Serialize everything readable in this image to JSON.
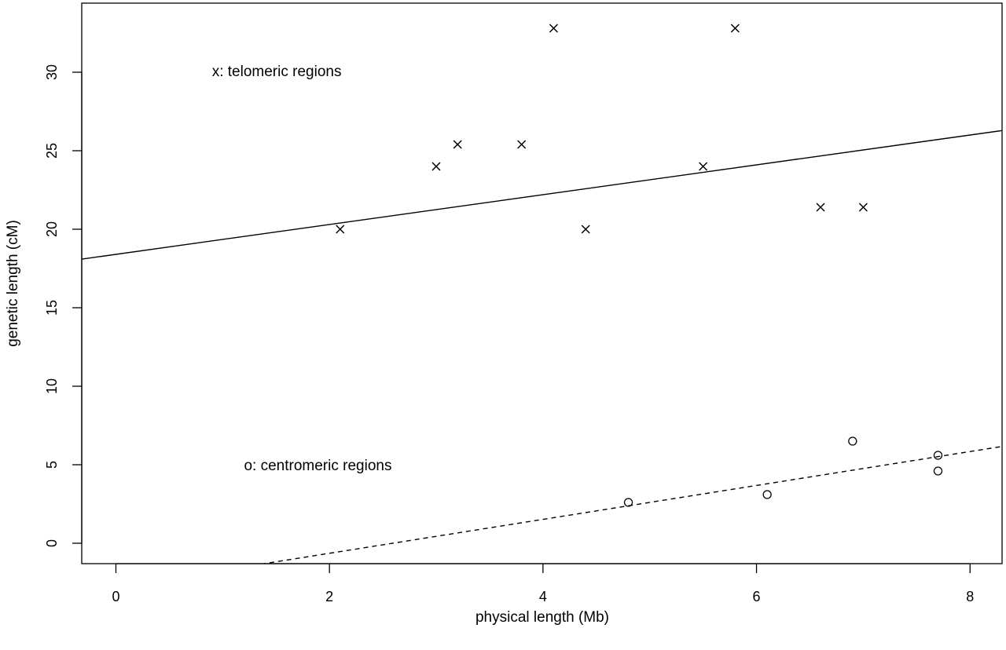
{
  "chart_data": {
    "type": "scatter",
    "xlabel": "physical length (Mb)",
    "ylabel": "genetic length (cM)",
    "xlim": [
      -0.32,
      8.3
    ],
    "ylim": [
      -1.3,
      34.4
    ],
    "x_ticks": [
      0,
      2,
      4,
      6,
      8
    ],
    "y_ticks": [
      0,
      5,
      10,
      15,
      20,
      25,
      30
    ],
    "grid": false,
    "box": true,
    "annotations": [
      {
        "text": "x: telomeric regions",
        "x": 0.9,
        "y": 30.1
      },
      {
        "text": "o: centromeric regions",
        "x": 1.2,
        "y": 5.0
      }
    ],
    "series": [
      {
        "marker": "x",
        "x": [
          2.1,
          3.0,
          3.2,
          3.8,
          4.1,
          4.4,
          5.5,
          5.8,
          6.6,
          7.0
        ],
        "y": [
          20.0,
          24.0,
          25.4,
          25.4,
          32.8,
          20.0,
          24.0,
          32.8,
          21.4,
          21.4
        ]
      },
      {
        "marker": "o",
        "x": [
          4.8,
          6.1,
          6.9,
          7.7,
          7.7
        ],
        "y": [
          2.6,
          3.1,
          6.5,
          5.6,
          4.6
        ]
      }
    ],
    "fit_lines": [
      {
        "style": "solid",
        "intercept": 18.4,
        "slope": 0.95
      },
      {
        "style": "dashed",
        "intercept": -2.8,
        "slope": 1.08
      }
    ]
  }
}
